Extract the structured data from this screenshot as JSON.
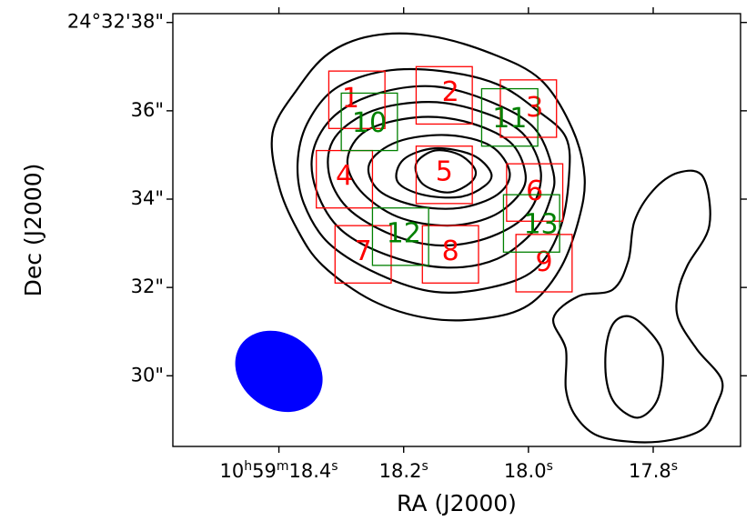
{
  "chart_data": {
    "type": "contour",
    "xlabel": "RA (J2000)",
    "ylabel": "Dec (J2000)",
    "x_ticks": [
      {
        "sec": 18.4,
        "parts": [
          "10",
          "h",
          "59",
          "m",
          "18.4",
          "s"
        ]
      },
      {
        "sec": 18.2,
        "parts": [
          "",
          "",
          "",
          "",
          "18.2",
          "s"
        ]
      },
      {
        "sec": 18.0,
        "parts": [
          "",
          "",
          "",
          "",
          "18.0",
          "s"
        ]
      },
      {
        "sec": 17.8,
        "parts": [
          "",
          "",
          "",
          "",
          "17.8",
          "s"
        ]
      }
    ],
    "y_ticks": [
      {
        "value": 38,
        "label": "24°32'38\""
      },
      {
        "value": 36,
        "label": "36\""
      },
      {
        "value": 34,
        "label": "34\""
      },
      {
        "value": 32,
        "label": "32\""
      },
      {
        "value": 30,
        "label": "30\""
      }
    ],
    "xlim_sec": [
      18.57,
      17.66
    ],
    "ylim_arcsec": [
      28.4,
      38.2
    ],
    "contours": [
      {
        "level": 1,
        "points": [
          [
            17.69,
            29.9
          ],
          [
            17.7,
            29.3
          ],
          [
            17.72,
            28.8
          ],
          [
            17.77,
            28.55
          ],
          [
            17.83,
            28.5
          ],
          [
            17.89,
            28.65
          ],
          [
            17.925,
            29.1
          ],
          [
            17.94,
            29.7
          ],
          [
            17.94,
            30.6
          ],
          [
            17.96,
            31.3
          ],
          [
            17.92,
            31.8
          ],
          [
            17.865,
            31.95
          ],
          [
            17.84,
            32.6
          ],
          [
            17.83,
            33.5
          ],
          [
            17.8,
            34.2
          ],
          [
            17.76,
            34.6
          ],
          [
            17.72,
            34.5
          ],
          [
            17.71,
            33.4
          ],
          [
            17.745,
            32.5
          ],
          [
            17.76,
            31.9
          ],
          [
            17.76,
            31.3
          ],
          [
            17.73,
            30.6
          ]
        ]
      },
      {
        "level": 1,
        "points": [
          [
            17.79,
            30.7
          ],
          [
            17.83,
            31.3
          ],
          [
            17.86,
            31.25
          ],
          [
            17.875,
            30.7
          ],
          [
            17.875,
            29.9
          ],
          [
            17.86,
            29.35
          ],
          [
            17.825,
            29.05
          ],
          [
            17.795,
            29.4
          ],
          [
            17.785,
            30.1
          ]
        ]
      },
      {
        "level": 2,
        "points": [
          [
            17.91,
            34.5
          ],
          [
            17.93,
            35.6
          ],
          [
            17.98,
            36.7
          ],
          [
            18.06,
            37.3
          ],
          [
            18.16,
            37.7
          ],
          [
            18.25,
            37.7
          ],
          [
            18.32,
            37.3
          ],
          [
            18.37,
            36.5
          ],
          [
            18.41,
            35.5
          ],
          [
            18.4,
            34.3
          ],
          [
            18.37,
            33.3
          ],
          [
            18.33,
            32.5
          ],
          [
            18.25,
            31.7
          ],
          [
            18.16,
            31.3
          ],
          [
            18.07,
            31.3
          ],
          [
            18.0,
            31.6
          ],
          [
            17.95,
            32.4
          ],
          [
            17.92,
            33.5
          ]
        ]
      },
      {
        "level": 3,
        "points": [
          [
            17.935,
            34.5
          ],
          [
            17.94,
            35.4
          ],
          [
            17.985,
            36.0
          ],
          [
            18.05,
            36.6
          ],
          [
            18.14,
            36.9
          ],
          [
            18.23,
            36.9
          ],
          [
            18.31,
            36.5
          ],
          [
            18.355,
            35.7
          ],
          [
            18.37,
            34.8
          ],
          [
            18.36,
            33.9
          ],
          [
            18.32,
            33.0
          ],
          [
            18.24,
            32.3
          ],
          [
            18.15,
            31.9
          ],
          [
            18.06,
            32.0
          ],
          [
            17.99,
            32.4
          ],
          [
            17.95,
            33.3
          ]
        ]
      },
      {
        "level": 4,
        "points": [
          [
            17.96,
            34.6
          ],
          [
            17.99,
            35.6
          ],
          [
            18.06,
            36.2
          ],
          [
            18.15,
            36.55
          ],
          [
            18.24,
            36.4
          ],
          [
            18.31,
            35.9
          ],
          [
            18.345,
            35.1
          ],
          [
            18.34,
            34.2
          ],
          [
            18.3,
            33.3
          ],
          [
            18.22,
            32.7
          ],
          [
            18.13,
            32.45
          ],
          [
            18.05,
            32.65
          ],
          [
            17.99,
            33.3
          ],
          [
            17.965,
            34.0
          ]
        ]
      },
      {
        "level": 5,
        "points": [
          [
            17.98,
            34.6
          ],
          [
            18.01,
            35.5
          ],
          [
            18.08,
            36.0
          ],
          [
            18.16,
            36.2
          ],
          [
            18.25,
            36.0
          ],
          [
            18.31,
            35.4
          ],
          [
            18.32,
            34.6
          ],
          [
            18.29,
            33.8
          ],
          [
            18.22,
            33.2
          ],
          [
            18.14,
            32.95
          ],
          [
            18.06,
            33.15
          ],
          [
            18.0,
            33.7
          ]
        ]
      },
      {
        "level": 6,
        "points": [
          [
            18.005,
            34.6
          ],
          [
            18.03,
            35.3
          ],
          [
            18.1,
            35.75
          ],
          [
            18.18,
            35.85
          ],
          [
            18.26,
            35.55
          ],
          [
            18.29,
            34.9
          ],
          [
            18.27,
            34.2
          ],
          [
            18.21,
            33.6
          ],
          [
            18.13,
            33.4
          ],
          [
            18.06,
            33.6
          ],
          [
            18.015,
            34.1
          ]
        ]
      },
      {
        "level": 7,
        "points": [
          [
            18.03,
            34.6
          ],
          [
            18.06,
            35.2
          ],
          [
            18.13,
            35.45
          ],
          [
            18.21,
            35.3
          ],
          [
            18.255,
            34.8
          ],
          [
            18.24,
            34.2
          ],
          [
            18.18,
            33.85
          ],
          [
            18.11,
            33.8
          ],
          [
            18.05,
            34.1
          ]
        ]
      },
      {
        "level": 8,
        "points": [
          [
            18.06,
            34.6
          ],
          [
            18.09,
            35.0
          ],
          [
            18.15,
            35.15
          ],
          [
            18.2,
            34.9
          ],
          [
            18.21,
            34.4
          ],
          [
            18.17,
            34.1
          ],
          [
            18.11,
            34.05
          ],
          [
            18.07,
            34.3
          ]
        ]
      },
      {
        "level": 9,
        "points": [
          [
            18.085,
            34.65
          ],
          [
            18.11,
            35.0
          ],
          [
            18.15,
            35.1
          ],
          [
            18.18,
            34.8
          ],
          [
            18.17,
            34.35
          ],
          [
            18.13,
            34.15
          ],
          [
            18.095,
            34.35
          ]
        ]
      }
    ],
    "regions": [
      {
        "id": "1",
        "color": "#ff0000",
        "x0": 18.32,
        "x1": 18.23,
        "y0": 35.6,
        "y1": 36.9,
        "label_ra": 18.285,
        "label_dec": 36.25
      },
      {
        "id": "2",
        "color": "#ff0000",
        "x0": 18.18,
        "x1": 18.09,
        "y0": 35.7,
        "y1": 37.0,
        "label_ra": 18.125,
        "label_dec": 36.4
      },
      {
        "id": "3",
        "color": "#ff0000",
        "x0": 18.045,
        "x1": 17.955,
        "y0": 35.4,
        "y1": 36.7,
        "label_ra": 17.99,
        "label_dec": 36.05
      },
      {
        "id": "4",
        "color": "#ff0000",
        "x0": 18.34,
        "x1": 18.25,
        "y0": 33.8,
        "y1": 35.1,
        "label_ra": 18.295,
        "label_dec": 34.5
      },
      {
        "id": "5",
        "color": "#ff0000",
        "x0": 18.18,
        "x1": 18.09,
        "y0": 33.9,
        "y1": 35.2,
        "label_ra": 18.135,
        "label_dec": 34.6
      },
      {
        "id": "6",
        "color": "#ff0000",
        "x0": 18.035,
        "x1": 17.945,
        "y0": 33.5,
        "y1": 34.8,
        "label_ra": 17.99,
        "label_dec": 34.15
      },
      {
        "id": "7",
        "color": "#ff0000",
        "x0": 18.31,
        "x1": 18.22,
        "y0": 32.1,
        "y1": 33.4,
        "label_ra": 18.265,
        "label_dec": 32.8
      },
      {
        "id": "8",
        "color": "#ff0000",
        "x0": 18.17,
        "x1": 18.08,
        "y0": 32.1,
        "y1": 33.4,
        "label_ra": 18.125,
        "label_dec": 32.8
      },
      {
        "id": "9",
        "color": "#ff0000",
        "x0": 18.02,
        "x1": 17.93,
        "y0": 31.9,
        "y1": 33.2,
        "label_ra": 17.975,
        "label_dec": 32.55
      },
      {
        "id": "10",
        "color": "#008000",
        "x0": 18.3,
        "x1": 18.21,
        "y0": 35.1,
        "y1": 36.4,
        "label_ra": 18.255,
        "label_dec": 35.7
      },
      {
        "id": "11",
        "color": "#008000",
        "x0": 18.075,
        "x1": 17.985,
        "y0": 35.2,
        "y1": 36.5,
        "label_ra": 18.03,
        "label_dec": 35.8
      },
      {
        "id": "12",
        "color": "#008000",
        "x0": 18.25,
        "x1": 18.16,
        "y0": 32.5,
        "y1": 33.8,
        "label_ra": 18.2,
        "label_dec": 33.2
      },
      {
        "id": "13",
        "color": "#008000",
        "x0": 18.04,
        "x1": 17.95,
        "y0": 32.8,
        "y1": 34.1,
        "label_ra": 17.98,
        "label_dec": 33.4
      }
    ],
    "beam": {
      "ra": 18.4,
      "dec": 30.1,
      "semi_major_arcsec": 1.05,
      "semi_minor_arcsec": 0.85,
      "angle_deg": -35,
      "color": "#0000ff"
    },
    "contour_color": "#000000",
    "grid": false,
    "legend": "none"
  }
}
